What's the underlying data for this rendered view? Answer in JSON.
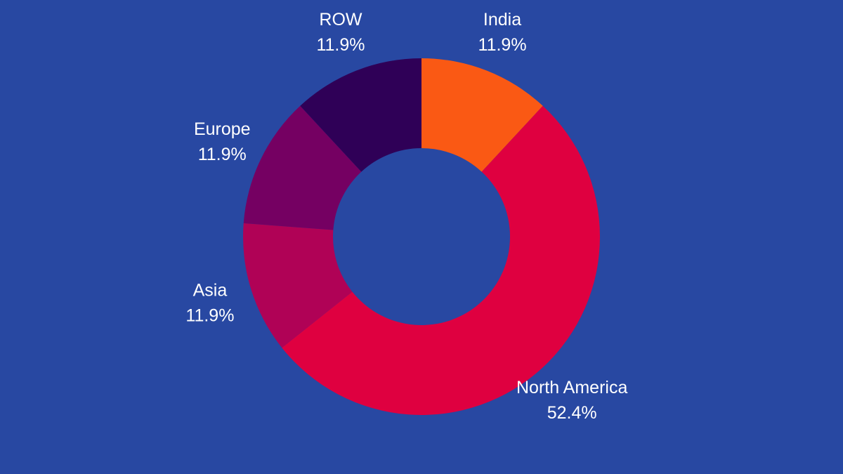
{
  "colors": {
    "background": "#2848a2"
  },
  "chart_data": {
    "type": "pie",
    "variant": "donut",
    "legend": "none",
    "categories": [
      "India",
      "North America",
      "Asia",
      "Europe",
      "ROW"
    ],
    "values": [
      11.9,
      52.4,
      11.9,
      11.9,
      11.9
    ],
    "value_labels": [
      "11.9%",
      "52.4%",
      "11.9%",
      "11.9%",
      "11.9%"
    ],
    "colors": [
      "#fa5914",
      "#df0040",
      "#b00256",
      "#750062",
      "#2f0057"
    ]
  }
}
